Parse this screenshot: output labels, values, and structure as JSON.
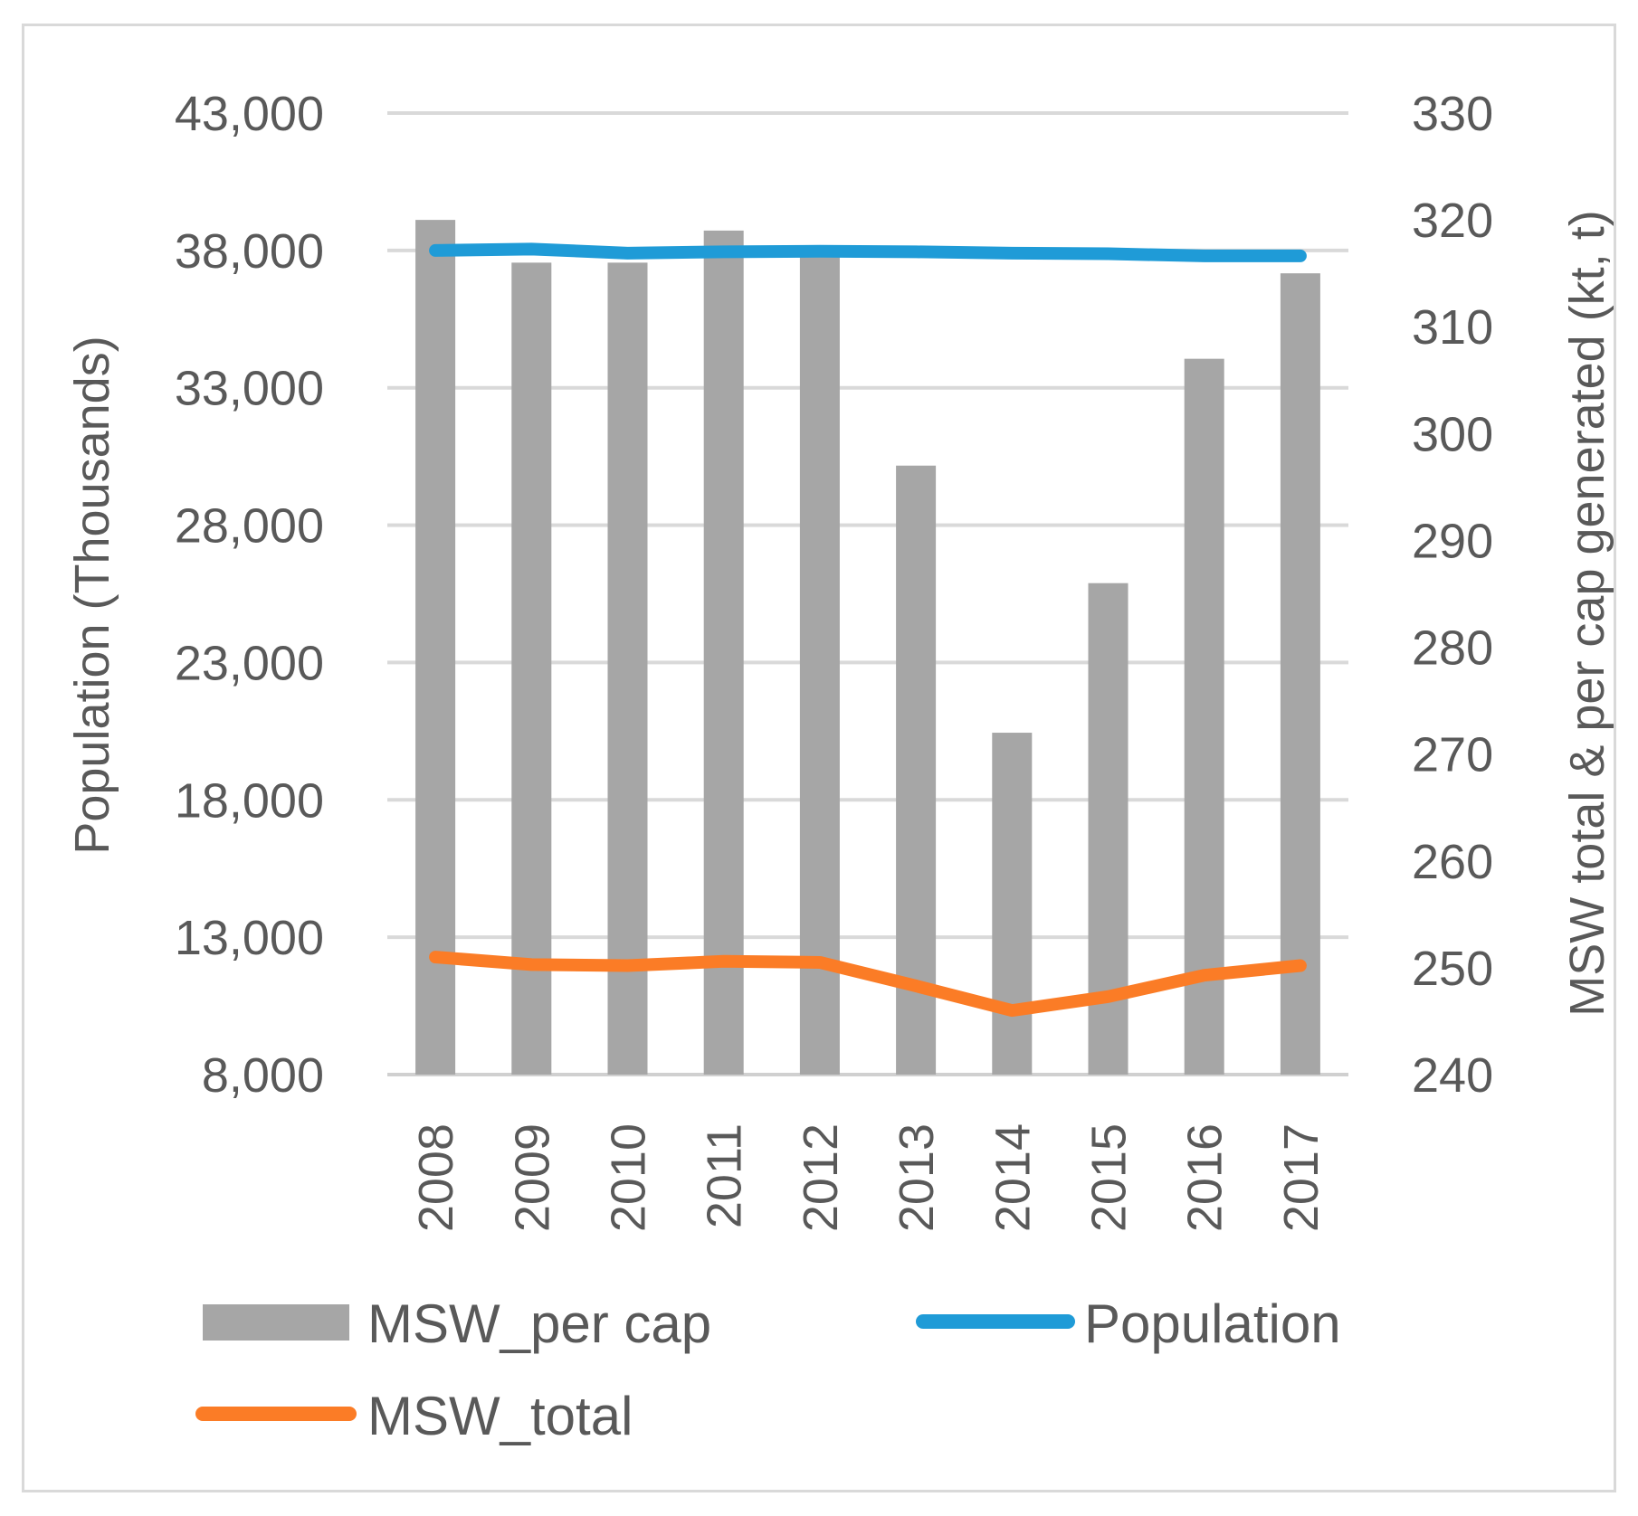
{
  "chart_data": {
    "type": "bar",
    "categories": [
      "2008",
      "2009",
      "2010",
      "2011",
      "2012",
      "2013",
      "2014",
      "2015",
      "2016",
      "2017"
    ],
    "series": [
      {
        "name": "MSW_per cap",
        "type": "bar",
        "axis": "right",
        "color": "#a6a6a6",
        "values": [
          320,
          316,
          316,
          319,
          317,
          297,
          272,
          286,
          307,
          315
        ]
      },
      {
        "name": "Population",
        "type": "line",
        "axis": "left",
        "color": "#1f9bd7",
        "values": [
          38000,
          38050,
          37900,
          37950,
          37970,
          37950,
          37900,
          37880,
          37800,
          37800
        ]
      },
      {
        "name": "MSW_total",
        "type": "line",
        "axis": "right",
        "color": "#fb7c26",
        "values": [
          251,
          250.3,
          250.2,
          250.6,
          250.5,
          248.3,
          246,
          247.3,
          249.3,
          250.2
        ]
      }
    ],
    "y_left": {
      "label": "Population (Thousands)",
      "ticks": [
        "8,000",
        "13,000",
        "18,000",
        "23,000",
        "28,000",
        "33,000",
        "38,000",
        "43,000"
      ],
      "lim": [
        8000,
        43000
      ]
    },
    "y_right": {
      "label": "MSW total & per cap generated (kt, t)",
      "ticks": [
        "240",
        "250",
        "260",
        "270",
        "280",
        "290",
        "300",
        "310",
        "320",
        "330"
      ],
      "lim": [
        240,
        330
      ]
    },
    "grid": true,
    "legend_position": "bottom"
  }
}
